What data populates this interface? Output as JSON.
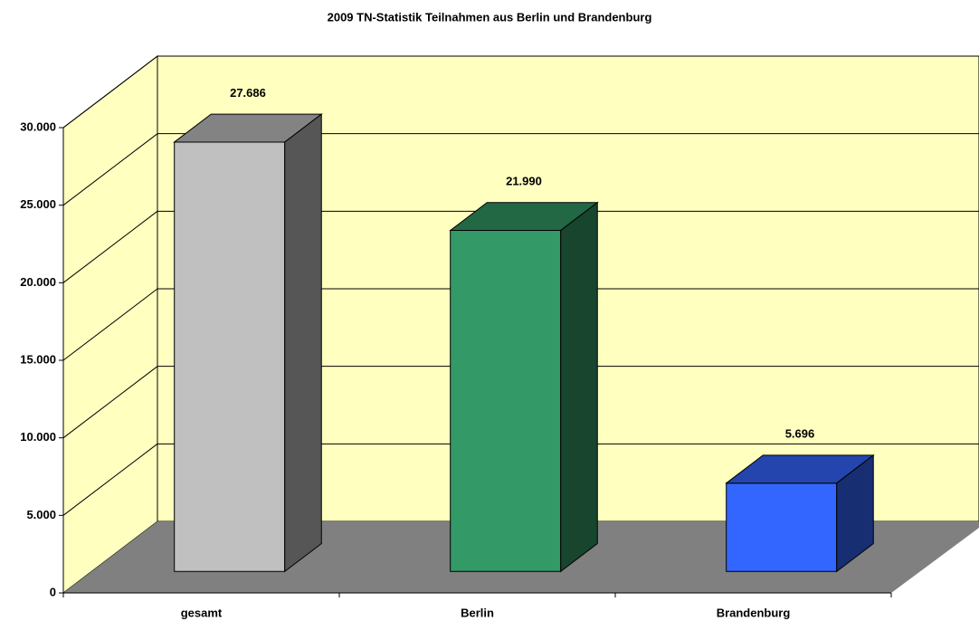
{
  "chart_data": {
    "type": "bar3d",
    "title": "2009 TN-Statistik Teilnahmen aus Berlin und Brandenburg",
    "categories": [
      "gesamt",
      "Berlin",
      "Brandenburg"
    ],
    "values": [
      27686,
      21990,
      5696
    ],
    "value_labels": [
      "27.686",
      "21.990",
      "5.696"
    ],
    "colors": [
      "#c0c0c0",
      "#339966",
      "#3366ff"
    ],
    "ylim": [
      0,
      30000
    ],
    "yticks": [
      0,
      {
        "value": 5000,
        "label": "5.000"
      },
      {
        "value": 10000,
        "label": "10.000"
      },
      {
        "value": 15000,
        "label": "15.000"
      },
      {
        "value": 20000,
        "label": "20.000"
      },
      {
        "value": 25000,
        "label": "25.000"
      },
      {
        "value": 30000,
        "label": "30.000"
      }
    ],
    "grid": true
  }
}
